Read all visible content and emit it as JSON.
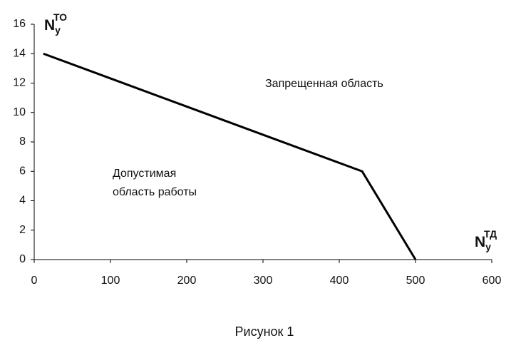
{
  "chart_data": {
    "type": "line",
    "x_label": {
      "main": "N",
      "sub": "у",
      "sup": "ТД"
    },
    "y_label": {
      "main": "N",
      "sub": "у",
      "sup": "ТО"
    },
    "annotations": [
      "Запрещенная область",
      "Допустимая",
      "область работы"
    ],
    "caption": "Рисунок 1",
    "series": [
      {
        "color": "#000000",
        "x": [
          12,
          430,
          500
        ],
        "values": [
          14,
          6,
          0
        ]
      }
    ],
    "xlim": [
      0,
      600
    ],
    "xticks": [
      0,
      100,
      200,
      300,
      400,
      500,
      600
    ],
    "ylim": [
      0,
      16
    ],
    "yticks": [
      0,
      2,
      4,
      6,
      8,
      10,
      12,
      14,
      16
    ]
  }
}
